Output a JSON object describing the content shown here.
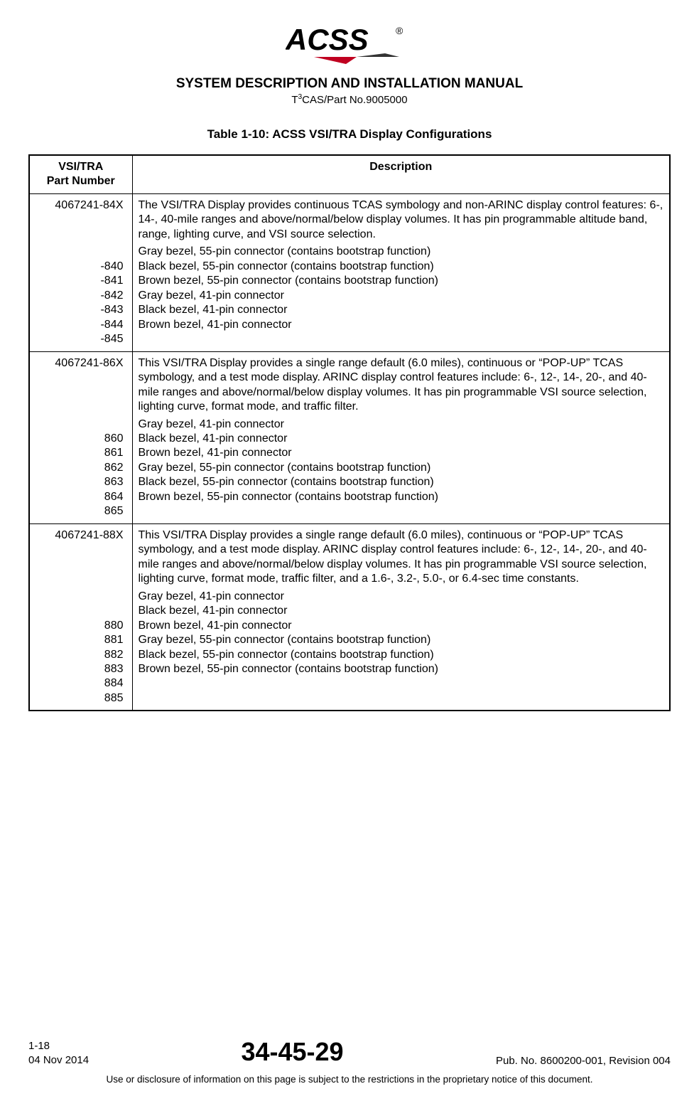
{
  "logo": {
    "text": "ACSS",
    "registered": "®"
  },
  "manual_title": "SYSTEM DESCRIPTION AND INSTALLATION MANUAL",
  "subtitle_prefix": "T",
  "subtitle_sup": "3",
  "subtitle_rest": "CAS/Part No.9005000",
  "table_title": "Table 1-10: ACSS VSI/TRA Display Configurations",
  "columns": {
    "part": "VSI/TRA\nPart Number",
    "desc": "Description"
  },
  "rows": [
    {
      "part_main": "4067241-84X",
      "gap_lines": 3,
      "subs": [
        "-840",
        "-841",
        "-842",
        "-843",
        "-844",
        "-845"
      ],
      "desc_main": "The VSI/TRA Display provides continuous TCAS symbology and non-ARINC display control features: 6-, 14-, 40-mile ranges and above/normal/below display volumes. It has pin programmable altitude band, range, lighting curve, and VSI source selection.",
      "desc_subs": [
        "Gray bezel, 55-pin connector (contains bootstrap function)",
        "Black bezel, 55-pin connector (contains bootstrap function)",
        "Brown bezel, 55-pin connector (contains bootstrap function)",
        "Gray bezel, 41-pin connector",
        "Black bezel, 41-pin connector",
        "Brown bezel, 41-pin connector"
      ]
    },
    {
      "part_main": "4067241-86X",
      "gap_lines": 4,
      "subs": [
        "860",
        "861",
        "862",
        "863",
        "864",
        "865"
      ],
      "desc_main": "This VSI/TRA Display provides a single range default (6.0 miles), continuous or “POP-UP” TCAS symbology, and a test mode display. ARINC display control features include: 6-, 12-, 14-, 20-, and 40-mile ranges and above/normal/below display volumes. It has pin programmable VSI source selection, lighting curve, format mode, and traffic filter.",
      "desc_subs": [
        "Gray bezel, 41-pin connector",
        "Black bezel, 41-pin connector",
        "Brown bezel, 41-pin connector",
        "Gray bezel, 55-pin connector (contains bootstrap function)",
        "Black bezel, 55-pin connector (contains bootstrap function)",
        "Brown bezel, 55-pin connector (contains bootstrap function)"
      ]
    },
    {
      "part_main": "4067241-88X",
      "gap_lines": 5,
      "subs": [
        "880",
        "881",
        "882",
        "883",
        "884",
        "885"
      ],
      "desc_main": "This VSI/TRA Display provides a single range default (6.0 miles), continuous or “POP-UP” TCAS symbology, and a test mode display. ARINC display control features include: 6-, 12-, 14-, 20-, and 40-mile ranges and above/normal/below display volumes. It has pin programmable VSI source selection, lighting curve, format mode, traffic filter, and a 1.6-, 3.2-, 5.0-, or 6.4-sec time constants.",
      "desc_subs": [
        "Gray bezel, 41-pin connector",
        "Black bezel, 41-pin connector",
        "Brown bezel, 41-pin connector",
        "Gray bezel, 55-pin connector (contains bootstrap function)",
        "Black bezel, 55-pin connector (contains bootstrap function)",
        "Brown bezel, 55-pin connector (contains bootstrap function)"
      ]
    }
  ],
  "footer": {
    "page_num": "1-18",
    "date": "04 Nov 2014",
    "center": "34-45-29",
    "pub": "Pub. No. 8600200-001, Revision 004",
    "notice": "Use or disclosure of information on this page is subject to the restrictions in the proprietary notice of this document."
  }
}
